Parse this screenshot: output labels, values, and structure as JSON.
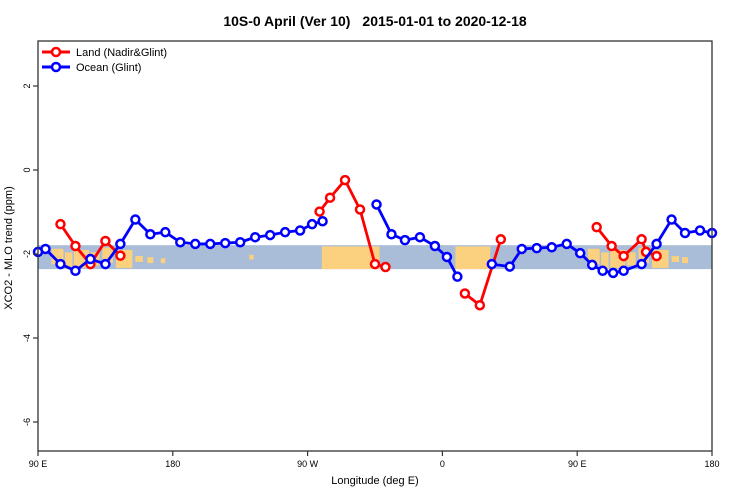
{
  "title": {
    "region": "10S-0 April (Ver 10)",
    "dates": "2015-01-01 to 2020-12-18"
  },
  "axes": {
    "x_label": "Longitude (deg E)",
    "y_label": "XCO2 - MLO trend (ppm)",
    "x_ticks": [
      {
        "lon": 90,
        "label": "90 E"
      },
      {
        "lon": 180,
        "label": "180"
      },
      {
        "lon": 270,
        "label": "90 W"
      },
      {
        "lon": 360,
        "label": "0"
      },
      {
        "lon": 450,
        "label": "90 E"
      },
      {
        "lon": 540,
        "label": "180"
      }
    ],
    "y_ticks": [
      {
        "value": 2,
        "label": "2"
      },
      {
        "value": 0,
        "label": "0"
      },
      {
        "value": -2,
        "label": "-2"
      },
      {
        "value": -4,
        "label": "-4"
      },
      {
        "value": -6,
        "label": "-6"
      }
    ]
  },
  "legend": [
    {
      "label": "Land (Nadir&Glint)",
      "color": "#ff0000"
    },
    {
      "label": "Ocean (Glint)",
      "color": "#0000ff"
    }
  ],
  "colors": {
    "land_series": "#ff0000",
    "ocean_series": "#0000ff",
    "map_ocean": "#a9bcd8",
    "map_land": "#fbd07e",
    "axis": "#333333"
  },
  "map_band": {
    "y_top_value": -1.79,
    "y_bottom_value": -2.36,
    "land_patches": [
      [
        99,
        107,
        0.15,
        0.8
      ],
      [
        108,
        113,
        0.3,
        1.0
      ],
      [
        114,
        124,
        0.2,
        0.95
      ],
      [
        125,
        131,
        0.3,
        0.85
      ],
      [
        133,
        140,
        0.1,
        0.75
      ],
      [
        142,
        153,
        0.2,
        0.95
      ],
      [
        155,
        160,
        0.45,
        0.7
      ],
      [
        163,
        167,
        0.5,
        0.75
      ],
      [
        172,
        175,
        0.55,
        0.75
      ],
      [
        231,
        234,
        0.4,
        0.6
      ],
      [
        279.5,
        318,
        0.05,
        1.0
      ],
      [
        368.7,
        392,
        0.05,
        1.0
      ],
      [
        457,
        465,
        0.15,
        0.8
      ],
      [
        466,
        471,
        0.3,
        1.0
      ],
      [
        472,
        482,
        0.2,
        0.95
      ],
      [
        483,
        489,
        0.3,
        0.85
      ],
      [
        491,
        498,
        0.1,
        0.75
      ],
      [
        500,
        511,
        0.2,
        0.95
      ],
      [
        513,
        518,
        0.45,
        0.7
      ],
      [
        520,
        524,
        0.5,
        0.75
      ]
    ]
  },
  "chart_data": {
    "type": "line",
    "title": "10S-0 April (Ver 10)  2015-01-01 to 2020-12-18",
    "xlabel": "Longitude (deg E)",
    "ylabel": "XCO2 - MLO trend (ppm)",
    "xlim": [
      90,
      540
    ],
    "ylim": [
      -6.6,
      3.1
    ],
    "grid": false,
    "legend_position": "top-left",
    "series": [
      {
        "name": "Land (Nadir&Glint)",
        "color": "#ff0000",
        "marker": "open-circle",
        "segments": [
          [
            [
              105,
              -1.29
            ],
            [
              115,
              -1.81
            ],
            [
              125,
              -2.24
            ],
            [
              135,
              -1.69
            ],
            [
              145,
              -2.04
            ]
          ],
          [
            [
              278,
              -0.99
            ],
            [
              285,
              -0.66
            ],
            [
              295,
              -0.24
            ],
            [
              305,
              -0.94
            ],
            [
              315,
              -2.24
            ],
            [
              322,
              -2.31
            ]
          ],
          [
            [
              375,
              -2.94
            ],
            [
              385,
              -3.22
            ],
            [
              399,
              -1.65
            ]
          ],
          [
            [
              463,
              -1.36
            ],
            [
              473,
              -1.81
            ],
            [
              481,
              -2.05
            ],
            [
              493,
              -1.65
            ],
            [
              496,
              -1.95
            ],
            [
              503,
              -2.05
            ]
          ]
        ]
      },
      {
        "name": "Ocean (Glint)",
        "color": "#0000ff",
        "marker": "open-circle",
        "segments": [
          [
            [
              90,
              -1.95
            ],
            [
              95,
              -1.88
            ],
            [
              105,
              -2.24
            ],
            [
              115,
              -2.4
            ],
            [
              125,
              -2.12
            ],
            [
              135,
              -2.24
            ],
            [
              145,
              -1.76
            ],
            [
              155,
              -1.18
            ],
            [
              165,
              -1.53
            ],
            [
              175,
              -1.48
            ],
            [
              185,
              -1.72
            ],
            [
              195,
              -1.76
            ],
            [
              205,
              -1.76
            ],
            [
              215,
              -1.74
            ],
            [
              225,
              -1.72
            ],
            [
              235,
              -1.6
            ],
            [
              245,
              -1.55
            ],
            [
              255,
              -1.48
            ],
            [
              265,
              -1.44
            ],
            [
              273,
              -1.29
            ],
            [
              280,
              -1.22
            ]
          ],
          [
            [
              316,
              -0.82
            ],
            [
              326,
              -1.53
            ],
            [
              335,
              -1.67
            ],
            [
              345,
              -1.6
            ],
            [
              355,
              -1.81
            ],
            [
              363,
              -2.07
            ],
            [
              370,
              -2.54
            ]
          ],
          [
            [
              393,
              -2.24
            ],
            [
              405,
              -2.3
            ],
            [
              413,
              -1.88
            ],
            [
              423,
              -1.86
            ],
            [
              433,
              -1.84
            ],
            [
              443,
              -1.76
            ],
            [
              452,
              -1.98
            ],
            [
              460,
              -2.26
            ],
            [
              467,
              -2.4
            ],
            [
              474,
              -2.45
            ],
            [
              481,
              -2.4
            ],
            [
              493,
              -2.24
            ],
            [
              503,
              -1.76
            ],
            [
              513,
              -1.18
            ],
            [
              522,
              -1.5
            ],
            [
              532,
              -1.44
            ],
            [
              540,
              -1.5
            ]
          ]
        ]
      }
    ]
  }
}
